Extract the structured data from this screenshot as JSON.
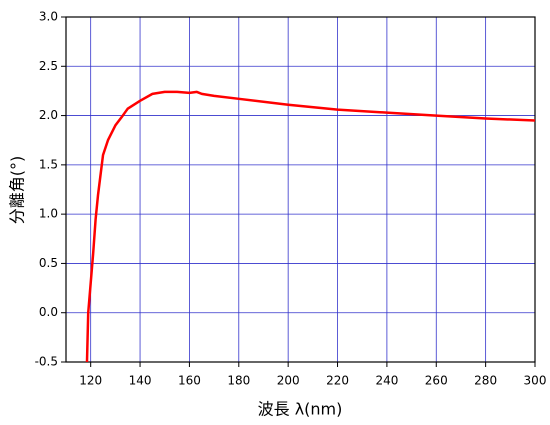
{
  "chart_data": {
    "type": "line",
    "x_label": "波長 λ(nm)",
    "y_label": "分離角(°)",
    "xlim": [
      110,
      300
    ],
    "xticks": [
      120,
      140,
      160,
      180,
      200,
      220,
      240,
      260,
      280,
      300
    ],
    "ylim": [
      -0.5,
      3.0
    ],
    "yticks": [
      -0.5,
      {
        "value": 0,
        "label": "0.0"
      },
      0.5,
      {
        "value": 1,
        "label": "1.0"
      },
      1.5,
      {
        "value": 2,
        "label": "2.0"
      },
      2.5,
      {
        "value": 3,
        "label": "3.0"
      }
    ],
    "grid": true,
    "grid_color": "#3333cc",
    "series": [
      {
        "color": "#ff0000",
        "x": [
          118.5,
          119,
          120,
          121,
          122,
          123,
          124,
          125,
          127,
          130,
          133,
          135,
          140,
          145,
          150,
          155,
          160,
          163,
          165,
          170,
          180,
          200,
          220,
          240,
          260,
          280,
          300
        ],
        "values": [
          -0.5,
          0.0,
          0.3,
          0.6,
          0.95,
          1.2,
          1.4,
          1.6,
          1.75,
          1.9,
          2.0,
          2.07,
          2.15,
          2.22,
          2.24,
          2.24,
          2.23,
          2.24,
          2.22,
          2.2,
          2.17,
          2.11,
          2.06,
          2.03,
          2.0,
          1.97,
          1.95
        ]
      }
    ]
  }
}
